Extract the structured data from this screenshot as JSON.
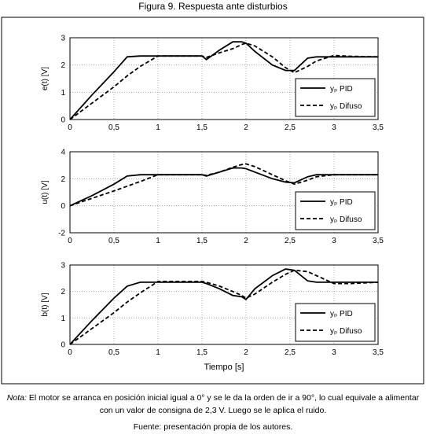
{
  "figure_title": "Figura 9. Respuesta ante disturbios",
  "x_label": "Tiempo [s]",
  "note_label": "Nota:",
  "note": "El motor se arranca en posición inicial igual a 0° y se le da la orden de ir a 90°, lo cual equivale a alimentar con un valor de consigna de 2,3 V. Luego se le aplica el ruido.",
  "source": "Fuente: presentación propia de los autores.",
  "chart_data": [
    {
      "type": "line",
      "y_label": "e(t) [V]",
      "grid": true,
      "legend": "lower right",
      "x": [
        0,
        0.25,
        0.5,
        0.65,
        0.8,
        1,
        1.5,
        1.55,
        1.7,
        1.85,
        1.95,
        2,
        2.1,
        2.3,
        2.45,
        2.55,
        2.7,
        2.8,
        3,
        3.2,
        3.5
      ],
      "xlim": [
        0,
        3.5
      ],
      "ylim": [
        0,
        3
      ],
      "yticks": [
        0,
        1,
        2,
        3
      ],
      "xticks": [
        0,
        {
          "value": 0.5,
          "label": "0,5"
        },
        1,
        {
          "value": 1.5,
          "label": "1,5"
        },
        2,
        {
          "value": 2.5,
          "label": "2,5"
        },
        3,
        {
          "value": 3.5,
          "label": "3,5"
        }
      ],
      "series": [
        {
          "name": "yₚ PID",
          "color": "#000000",
          "dash": "solid",
          "values": [
            0,
            0.9,
            1.75,
            2.3,
            2.33,
            2.33,
            2.33,
            2.2,
            2.55,
            2.85,
            2.85,
            2.8,
            2.5,
            2.0,
            1.8,
            1.8,
            2.25,
            2.3,
            2.3,
            2.3,
            2.3
          ]
        },
        {
          "name": "yₚ Difuso",
          "color": "#000000",
          "dash": "dashed",
          "values": [
            0,
            0.6,
            1.2,
            1.6,
            1.95,
            2.33,
            2.33,
            2.28,
            2.45,
            2.6,
            2.75,
            2.8,
            2.7,
            2.3,
            1.9,
            1.72,
            1.95,
            2.15,
            2.35,
            2.32,
            2.3
          ]
        }
      ]
    },
    {
      "type": "line",
      "y_label": "u(t) [V]",
      "grid": true,
      "legend": "lower right",
      "x": [
        0,
        0.25,
        0.5,
        0.65,
        0.8,
        1,
        1.5,
        1.55,
        1.7,
        1.85,
        1.95,
        2,
        2.1,
        2.3,
        2.45,
        2.55,
        2.7,
        2.8,
        3,
        3.2,
        3.5
      ],
      "xlim": [
        0,
        3.5
      ],
      "ylim": [
        -2,
        4
      ],
      "yticks": [
        -2,
        0,
        2,
        4
      ],
      "xticks": [
        0,
        {
          "value": 0.5,
          "label": "0,5"
        },
        1,
        {
          "value": 1.5,
          "label": "1,5"
        },
        2,
        {
          "value": 2.5,
          "label": "2,5"
        },
        3,
        {
          "value": 3.5,
          "label": "3,5"
        }
      ],
      "series": [
        {
          "name": "yₚ PID",
          "color": "#000000",
          "dash": "solid",
          "values": [
            0,
            0.75,
            1.6,
            2.2,
            2.3,
            2.3,
            2.3,
            2.2,
            2.5,
            2.8,
            2.8,
            2.75,
            2.5,
            2.0,
            1.75,
            1.7,
            2.15,
            2.3,
            2.3,
            2.3,
            2.3
          ]
        },
        {
          "name": "yₚ Difuso",
          "color": "#000000",
          "dash": "dashed",
          "values": [
            0,
            0.55,
            1.1,
            1.45,
            1.8,
            2.3,
            2.3,
            2.25,
            2.5,
            2.85,
            3.05,
            3.1,
            2.9,
            2.3,
            1.85,
            1.6,
            1.9,
            2.15,
            2.3,
            2.3,
            2.3
          ]
        }
      ]
    },
    {
      "type": "line",
      "y_label": "b(t) [V]",
      "grid": true,
      "legend": "lower right",
      "x": [
        0,
        0.25,
        0.5,
        0.65,
        0.8,
        1,
        1.5,
        1.55,
        1.7,
        1.85,
        1.95,
        2,
        2.1,
        2.3,
        2.45,
        2.55,
        2.7,
        2.8,
        3,
        3.2,
        3.5
      ],
      "xlim": [
        0,
        3.5
      ],
      "ylim": [
        0,
        3
      ],
      "yticks": [
        0,
        1,
        2,
        3
      ],
      "xticks": [
        0,
        {
          "value": 0.5,
          "label": "0,5"
        },
        1,
        {
          "value": 1.5,
          "label": "1,5"
        },
        2,
        {
          "value": 2.5,
          "label": "2,5"
        },
        3,
        {
          "value": 3.5,
          "label": "3,5"
        }
      ],
      "series": [
        {
          "name": "yₚ PID",
          "color": "#000000",
          "dash": "solid",
          "values": [
            0,
            0.9,
            1.75,
            2.2,
            2.35,
            2.35,
            2.35,
            2.3,
            2.1,
            1.85,
            1.8,
            1.7,
            2.1,
            2.6,
            2.85,
            2.8,
            2.4,
            2.35,
            2.35,
            2.35,
            2.35
          ]
        },
        {
          "name": "yₚ Difuso",
          "color": "#000000",
          "dash": "dashed",
          "values": [
            0,
            0.6,
            1.2,
            1.6,
            1.95,
            2.38,
            2.38,
            2.35,
            2.2,
            2.0,
            1.85,
            1.75,
            1.9,
            2.35,
            2.65,
            2.8,
            2.75,
            2.6,
            2.3,
            2.3,
            2.35
          ]
        }
      ]
    }
  ]
}
